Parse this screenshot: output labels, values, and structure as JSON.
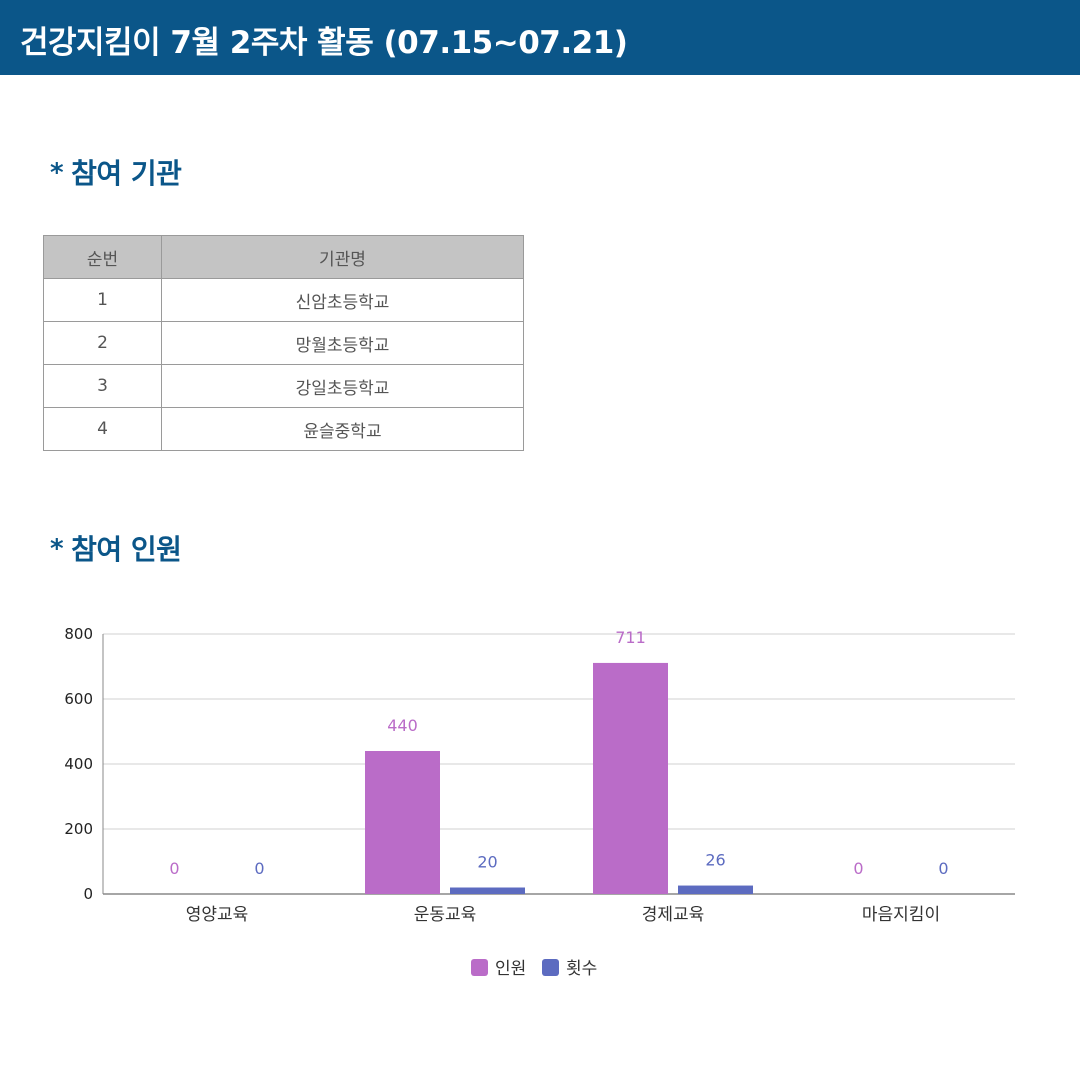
{
  "header": {
    "title": "건강지킴이 7월 2주차 활동 (07.15~07.21)"
  },
  "sections": {
    "institutions": {
      "bullet": "*",
      "title": "참여 기관"
    },
    "participants": {
      "bullet": "*",
      "title": "참여 인원"
    }
  },
  "institution_table": {
    "headers": [
      "순번",
      "기관명"
    ],
    "rows": [
      {
        "no": "1",
        "name": "신암초등학교"
      },
      {
        "no": "2",
        "name": "망월초등학교"
      },
      {
        "no": "3",
        "name": "강일초등학교"
      },
      {
        "no": "4",
        "name": "윤슬중학교"
      }
    ]
  },
  "colors": {
    "header_bg": "#0b5689",
    "people": "#ba6cc8",
    "sessions": "#5c6bc0"
  },
  "chart_data": {
    "type": "bar",
    "categories": [
      "영양교육",
      "운동교육",
      "경제교육",
      "마음지킴이"
    ],
    "series": [
      {
        "name": "인원",
        "values": [
          0,
          440,
          711,
          0
        ],
        "color": "#ba6cc8"
      },
      {
        "name": "횟수",
        "values": [
          0,
          20,
          26,
          0
        ],
        "color": "#5c6bc0"
      }
    ],
    "title": "",
    "xlabel": "",
    "ylabel": "",
    "ylim": [
      0,
      800
    ],
    "yticks": [
      0,
      200,
      400,
      600,
      800
    ],
    "grid": true,
    "legend": "bottom-center",
    "data_labels": true
  }
}
